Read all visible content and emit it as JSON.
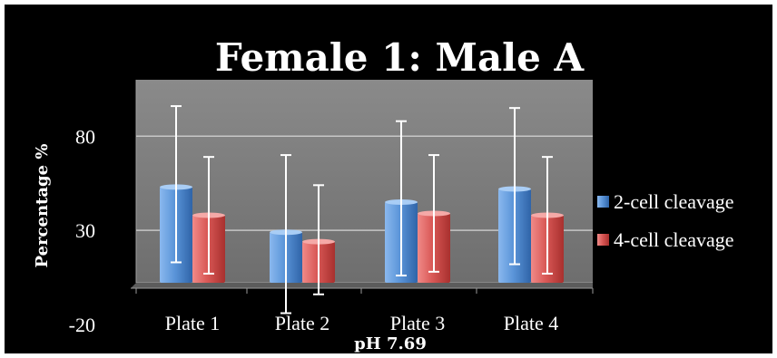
{
  "chart_data": {
    "type": "bar",
    "title": "Female 1: Male A",
    "xlabel": "pH 7.69",
    "ylabel": "Percentage %",
    "categories": [
      "Plate 1",
      "Plate 2",
      "Plate 3",
      "Plate 4"
    ],
    "series": [
      {
        "name": "2-cell cleavage",
        "values": [
          53,
          29,
          45,
          52
        ],
        "error_low": [
          13,
          -14,
          6,
          12
        ],
        "error_high": [
          96,
          70,
          88,
          95
        ],
        "color": "#5b95d9"
      },
      {
        "name": "4-cell cleavage",
        "values": [
          38,
          24,
          39,
          38
        ],
        "error_low": [
          7,
          -4,
          8,
          7
        ],
        "error_high": [
          69,
          54,
          70,
          69
        ],
        "color": "#d95856"
      }
    ],
    "yticks": [
      "-20",
      "30",
      "80"
    ],
    "ylim": [
      -20,
      110
    ],
    "grid": true,
    "legend_position": "right",
    "colors": {
      "background": "#000000",
      "plot_area": "#7f7f7f",
      "gridline": "#c7c7c7",
      "floor": "#5c5c5c",
      "error_bar": "#ffffff",
      "text": "#ffffff"
    }
  }
}
